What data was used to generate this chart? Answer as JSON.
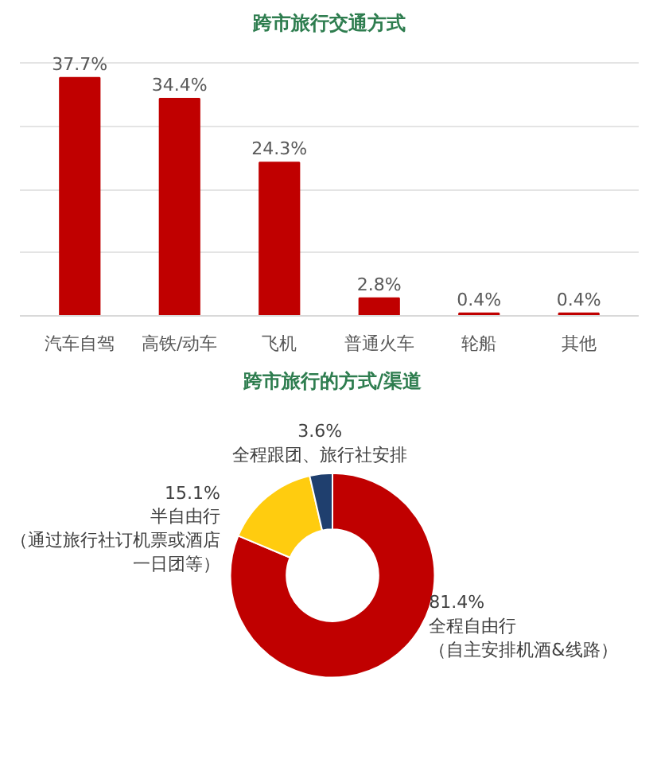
{
  "chart_data": [
    {
      "type": "bar",
      "title": "跨市旅行交通方式",
      "categories": [
        "汽车自驾",
        "高铁/动车",
        "飞机",
        "普通火车",
        "轮船",
        "其他"
      ],
      "values": [
        37.7,
        34.4,
        24.3,
        2.8,
        0.4,
        0.4
      ],
      "value_labels": [
        "37.7%",
        "34.4%",
        "24.3%",
        "2.8%",
        "0.4%",
        "0.4%"
      ],
      "color": "#c00000",
      "grid": "y",
      "tick_labels": "x"
    },
    {
      "type": "donut",
      "title": "跨市旅行的方式/渠道",
      "categories": [
        "全程自由行（自主安排机酒&线路）",
        "半自由行（通过旅行社订机票或酒店一日团等）",
        "全程跟团、旅行社安排"
      ],
      "values": [
        81.4,
        15.1,
        3.6
      ],
      "value_labels": [
        "81.4%",
        "15.1%",
        "3.6%"
      ],
      "colors": [
        "#c00000",
        "#ffcc0f",
        "#1f3f6e"
      ]
    }
  ]
}
